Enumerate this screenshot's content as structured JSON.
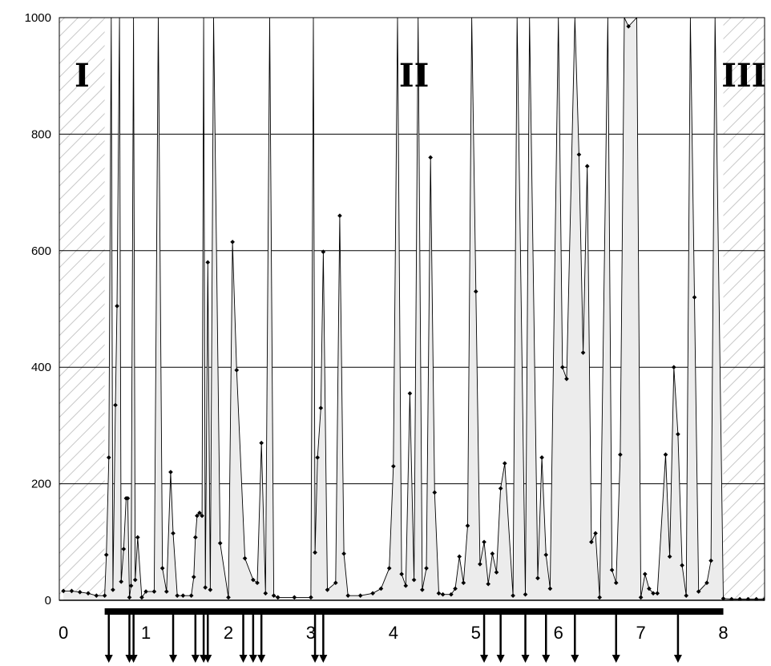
{
  "chart_data": {
    "type": "line",
    "title": "",
    "xlabel": "",
    "ylabel": "",
    "xlim": [
      -0.05,
      8.5
    ],
    "ylim": [
      0,
      1000
    ],
    "yticks": [
      0,
      200,
      400,
      600,
      800,
      1000
    ],
    "xticks": [
      0,
      1,
      2,
      3,
      4,
      5,
      6,
      7,
      8
    ],
    "grid": "horizontal",
    "regions": [
      {
        "label": "I",
        "from": -0.05,
        "to": 0.5,
        "hatched": true
      },
      {
        "label": "II",
        "from": 0.5,
        "to": 8.0,
        "hatched": false
      },
      {
        "label": "III",
        "from": 8.0,
        "to": 8.5,
        "hatched": true
      }
    ],
    "interval_bar": {
      "from": 0.5,
      "to": 8.0
    },
    "arrows_x": [
      0.55,
      0.8,
      0.85,
      1.33,
      1.6,
      1.7,
      1.75,
      2.18,
      2.3,
      2.4,
      3.05,
      3.15,
      5.1,
      5.3,
      5.6,
      5.85,
      6.2,
      6.7,
      7.45
    ],
    "series": [
      {
        "points": [
          [
            0.0,
            16
          ],
          [
            0.1,
            16
          ],
          [
            0.2,
            14
          ],
          [
            0.3,
            12
          ],
          [
            0.4,
            8
          ],
          [
            0.5,
            8
          ],
          [
            0.52,
            78
          ],
          [
            0.55,
            245
          ],
          [
            0.58,
            1000
          ],
          [
            0.6,
            18
          ],
          [
            0.63,
            335
          ],
          [
            0.65,
            505
          ],
          [
            0.68,
            1000
          ],
          [
            0.7,
            32
          ],
          [
            0.73,
            88
          ],
          [
            0.76,
            175
          ],
          [
            0.78,
            175
          ],
          [
            0.8,
            5
          ],
          [
            0.82,
            25
          ],
          [
            0.85,
            1000
          ],
          [
            0.87,
            35
          ],
          [
            0.9,
            108
          ],
          [
            0.95,
            5
          ],
          [
            1.0,
            15
          ],
          [
            1.1,
            15
          ],
          [
            1.15,
            1000
          ],
          [
            1.2,
            55
          ],
          [
            1.25,
            15
          ],
          [
            1.3,
            220
          ],
          [
            1.33,
            115
          ],
          [
            1.38,
            8
          ],
          [
            1.45,
            8
          ],
          [
            1.55,
            8
          ],
          [
            1.58,
            40
          ],
          [
            1.6,
            108
          ],
          [
            1.62,
            145
          ],
          [
            1.65,
            150
          ],
          [
            1.68,
            145
          ],
          [
            1.7,
            1000
          ],
          [
            1.72,
            22
          ],
          [
            1.75,
            580
          ],
          [
            1.78,
            18
          ],
          [
            1.82,
            1000
          ],
          [
            1.9,
            98
          ],
          [
            2.0,
            5
          ],
          [
            2.05,
            615
          ],
          [
            2.1,
            395
          ],
          [
            2.2,
            72
          ],
          [
            2.3,
            35
          ],
          [
            2.35,
            30
          ],
          [
            2.4,
            270
          ],
          [
            2.45,
            12
          ],
          [
            2.5,
            1000
          ],
          [
            2.55,
            8
          ],
          [
            2.6,
            5
          ],
          [
            2.8,
            5
          ],
          [
            3.0,
            5
          ],
          [
            3.03,
            1000
          ],
          [
            3.05,
            82
          ],
          [
            3.08,
            245
          ],
          [
            3.12,
            330
          ],
          [
            3.15,
            598
          ],
          [
            3.2,
            18
          ],
          [
            3.3,
            30
          ],
          [
            3.35,
            660
          ],
          [
            3.4,
            80
          ],
          [
            3.45,
            8
          ],
          [
            3.6,
            8
          ],
          [
            3.75,
            12
          ],
          [
            3.85,
            20
          ],
          [
            3.95,
            55
          ],
          [
            4.0,
            230
          ],
          [
            4.05,
            1000
          ],
          [
            4.1,
            45
          ],
          [
            4.15,
            25
          ],
          [
            4.2,
            355
          ],
          [
            4.25,
            35
          ],
          [
            4.3,
            1000
          ],
          [
            4.35,
            18
          ],
          [
            4.4,
            55
          ],
          [
            4.45,
            760
          ],
          [
            4.5,
            185
          ],
          [
            4.55,
            12
          ],
          [
            4.6,
            10
          ],
          [
            4.7,
            10
          ],
          [
            4.75,
            20
          ],
          [
            4.8,
            75
          ],
          [
            4.85,
            30
          ],
          [
            4.9,
            128
          ],
          [
            4.95,
            1000
          ],
          [
            5.0,
            530
          ],
          [
            5.05,
            62
          ],
          [
            5.1,
            100
          ],
          [
            5.15,
            28
          ],
          [
            5.2,
            80
          ],
          [
            5.25,
            48
          ],
          [
            5.3,
            192
          ],
          [
            5.35,
            235
          ],
          [
            5.45,
            8
          ],
          [
            5.5,
            1000
          ],
          [
            5.6,
            10
          ],
          [
            5.65,
            1000
          ],
          [
            5.75,
            38
          ],
          [
            5.8,
            245
          ],
          [
            5.85,
            78
          ],
          [
            5.9,
            20
          ],
          [
            6.0,
            1000
          ],
          [
            6.05,
            400
          ],
          [
            6.1,
            380
          ],
          [
            6.2,
            1000
          ],
          [
            6.25,
            765
          ],
          [
            6.3,
            425
          ],
          [
            6.35,
            745
          ],
          [
            6.4,
            100
          ],
          [
            6.45,
            115
          ],
          [
            6.5,
            5
          ],
          [
            6.6,
            1000
          ],
          [
            6.65,
            52
          ],
          [
            6.7,
            30
          ],
          [
            6.75,
            250
          ],
          [
            6.8,
            1000
          ],
          [
            6.85,
            985
          ],
          [
            6.95,
            1000
          ],
          [
            7.0,
            5
          ],
          [
            7.05,
            45
          ],
          [
            7.1,
            20
          ],
          [
            7.15,
            12
          ],
          [
            7.2,
            12
          ],
          [
            7.3,
            250
          ],
          [
            7.35,
            75
          ],
          [
            7.4,
            400
          ],
          [
            7.45,
            285
          ],
          [
            7.5,
            60
          ],
          [
            7.55,
            8
          ],
          [
            7.6,
            1000
          ],
          [
            7.65,
            520
          ],
          [
            7.7,
            15
          ],
          [
            7.8,
            30
          ],
          [
            7.85,
            68
          ],
          [
            7.9,
            1000
          ],
          [
            8.0,
            3
          ],
          [
            8.1,
            2
          ],
          [
            8.2,
            2
          ],
          [
            8.3,
            2
          ],
          [
            8.4,
            2
          ],
          [
            8.5,
            2
          ]
        ]
      }
    ]
  }
}
